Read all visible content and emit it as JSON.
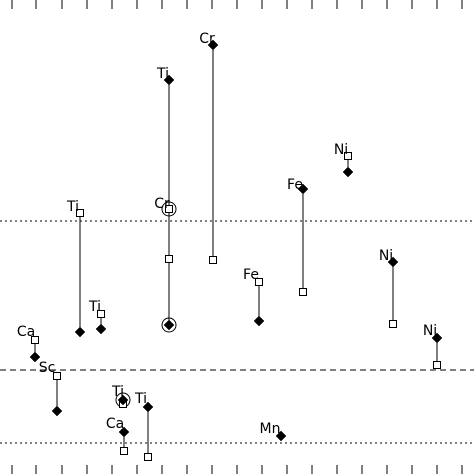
{
  "chart_data": {
    "type": "scatter",
    "description_free": true,
    "xlim": [
      0,
      474
    ],
    "ylim": [
      0,
      474
    ],
    "y_direction": "down",
    "ticks": {
      "x_values": [
        12,
        36,
        62,
        87,
        112,
        137,
        162,
        187,
        212,
        237,
        262,
        287,
        312,
        337,
        362,
        387,
        412,
        437,
        462
      ]
    },
    "reference_lines": [
      {
        "y": 221,
        "style": "dotted"
      },
      {
        "y": 370,
        "style": "dashed"
      },
      {
        "y": 443,
        "style": "dotted"
      }
    ],
    "elements": [
      {
        "label": "Cr",
        "label_x": 207,
        "label_y": 38,
        "x": 213,
        "filled_y": 45,
        "open_y": 260
      },
      {
        "label": "Ti",
        "label_x": 163,
        "label_y": 73,
        "x": 169,
        "filled_y": 80,
        "open_y": 259
      },
      {
        "label": "Cr",
        "label_x": 162,
        "label_y": 203,
        "x": 169,
        "filled_y": 325,
        "open_y": 209,
        "ringed": [
          209,
          325
        ]
      },
      {
        "label": "Ni",
        "label_x": 341,
        "label_y": 149,
        "x": 348,
        "filled_y": 172,
        "open_y": 156
      },
      {
        "label": "Fe",
        "label_x": 295,
        "label_y": 184,
        "x": 303,
        "filled_y": 189,
        "open_y": 292
      },
      {
        "label": "Ti",
        "label_x": 73,
        "label_y": 206,
        "x": 80,
        "filled_y": 332,
        "open_y": 213
      },
      {
        "label": "Ni",
        "label_x": 386,
        "label_y": 255,
        "x": 393,
        "filled_y": 262,
        "open_y": 324
      },
      {
        "label": "Fe",
        "label_x": 251,
        "label_y": 274,
        "x": 259,
        "filled_y": 321,
        "open_y": 282
      },
      {
        "label": "Ti",
        "label_x": 95,
        "label_y": 306,
        "x": 101,
        "filled_y": 329,
        "open_y": 314
      },
      {
        "label": "Ni",
        "label_x": 430,
        "label_y": 330,
        "x": 437,
        "filled_y": 338,
        "open_y": 365
      },
      {
        "label": "Ca",
        "label_x": 26,
        "label_y": 331,
        "x": 35,
        "filled_y": 357,
        "open_y": 340
      },
      {
        "label": "Sc",
        "label_x": 47,
        "label_y": 367,
        "x": 57,
        "filled_y": 411,
        "open_y": 376
      },
      {
        "label": "Ti",
        "label_x": 118,
        "label_y": 391,
        "x": 123,
        "filled_y": 400,
        "open_y": 404,
        "ringed": [
          400
        ]
      },
      {
        "label": "Ti",
        "label_x": 141,
        "label_y": 398,
        "x": 148,
        "filled_y": 407,
        "open_y": 457
      },
      {
        "label": "Ca",
        "label_x": 115,
        "label_y": 423,
        "x": 124,
        "filled_y": 432,
        "open_y": 451
      },
      {
        "label": "Mn",
        "label_x": 270,
        "label_y": 428,
        "x": 281,
        "filled_y": 436,
        "open_y": null
      }
    ]
  }
}
